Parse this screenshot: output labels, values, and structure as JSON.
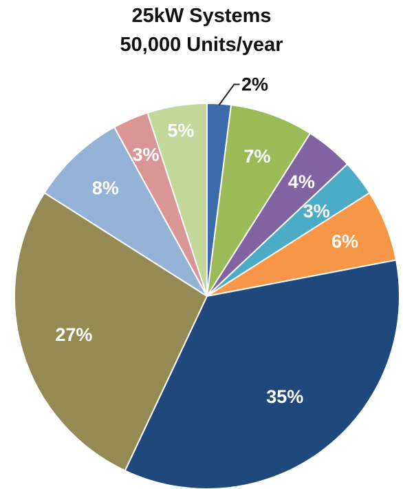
{
  "chart_data": {
    "type": "pie",
    "title": "25kW Systems",
    "subtitle": "50,000 Units/year",
    "start_angle_deg": 0,
    "direction": "clockwise",
    "slices": [
      {
        "label": "2%",
        "value": 2,
        "color": "#3D6AAA",
        "label_color": "#111111"
      },
      {
        "label": "7%",
        "value": 7,
        "color": "#9BBB59",
        "label_color": "#FFFFFF"
      },
      {
        "label": "4%",
        "value": 4,
        "color": "#8064A2",
        "label_color": "#FFFFFF"
      },
      {
        "label": "3%",
        "value": 3,
        "color": "#4BACC6",
        "label_color": "#FFFFFF"
      },
      {
        "label": "6%",
        "value": 6,
        "color": "#F79646",
        "label_color": "#FFFFFF"
      },
      {
        "label": "35%",
        "value": 35,
        "color": "#1F497D",
        "label_color": "#FFFFFF"
      },
      {
        "label": "27%",
        "value": 27,
        "color": "#948A54",
        "label_color": "#FFFFFF"
      },
      {
        "label": "8%",
        "value": 8,
        "color": "#95B3D7",
        "label_color": "#FFFFFF"
      },
      {
        "label": "3%",
        "value": 3,
        "color": "#DA9694",
        "label_color": "#FFFFFF"
      },
      {
        "label": "5%",
        "value": 5,
        "color": "#C4D79B",
        "label_color": "#FFFFFF"
      }
    ],
    "legend": "none"
  }
}
